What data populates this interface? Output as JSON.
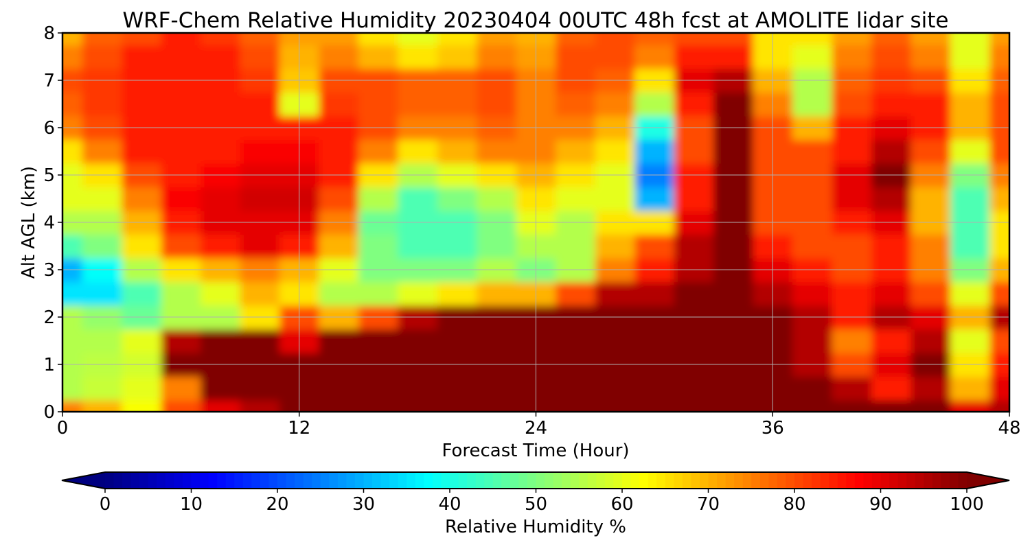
{
  "chart_data": {
    "type": "heatmap",
    "title": "WRF-Chem Relative Humidity 20230404 00UTC 48h fcst at AMOLITE lidar site",
    "xlabel": "Forecast Time (Hour)",
    "ylabel": "Alt AGL (km)",
    "xlim": [
      0,
      48
    ],
    "ylim": [
      0,
      8
    ],
    "xticks": [
      0,
      12,
      24,
      36,
      48
    ],
    "yticks": [
      0,
      1,
      2,
      3,
      4,
      5,
      6,
      7,
      8
    ],
    "grid": true,
    "x": [
      0,
      2,
      4,
      6,
      8,
      10,
      12,
      14,
      16,
      18,
      20,
      22,
      24,
      26,
      28,
      30,
      32,
      34,
      36,
      38,
      40,
      42,
      44,
      46,
      48
    ],
    "y": [
      0,
      0.5,
      1,
      1.5,
      2,
      2.5,
      3,
      3.5,
      4,
      4.5,
      5,
      5.5,
      6,
      6.5,
      7,
      7.5,
      8
    ],
    "z": [
      [
        75,
        70,
        62,
        80,
        90,
        95,
        100,
        100,
        100,
        100,
        100,
        100,
        100,
        100,
        100,
        100,
        100,
        100,
        100,
        100,
        100,
        100,
        100,
        90,
        95
      ],
      [
        55,
        57,
        60,
        75,
        100,
        100,
        100,
        100,
        100,
        100,
        100,
        100,
        100,
        100,
        100,
        100,
        100,
        100,
        100,
        100,
        95,
        85,
        95,
        70,
        90
      ],
      [
        55,
        56,
        58,
        100,
        100,
        100,
        100,
        100,
        100,
        100,
        100,
        100,
        100,
        100,
        100,
        100,
        100,
        100,
        100,
        95,
        80,
        90,
        100,
        65,
        85
      ],
      [
        55,
        55,
        60,
        95,
        100,
        100,
        90,
        100,
        100,
        100,
        100,
        100,
        100,
        100,
        100,
        100,
        100,
        100,
        100,
        95,
        75,
        85,
        95,
        60,
        80
      ],
      [
        55,
        52,
        48,
        55,
        55,
        65,
        80,
        70,
        80,
        95,
        100,
        100,
        100,
        100,
        100,
        100,
        100,
        100,
        100,
        95,
        85,
        95,
        90,
        70,
        95
      ],
      [
        35,
        35,
        45,
        55,
        60,
        70,
        65,
        55,
        55,
        60,
        65,
        70,
        70,
        80,
        95,
        95,
        100,
        100,
        95,
        90,
        85,
        90,
        80,
        60,
        80
      ],
      [
        30,
        38,
        55,
        65,
        70,
        75,
        70,
        60,
        50,
        50,
        50,
        55,
        50,
        55,
        75,
        85,
        95,
        100,
        90,
        85,
        80,
        85,
        75,
        50,
        70
      ],
      [
        45,
        50,
        65,
        80,
        85,
        90,
        85,
        70,
        50,
        45,
        45,
        50,
        55,
        55,
        70,
        80,
        95,
        100,
        85,
        80,
        80,
        85,
        75,
        45,
        65
      ],
      [
        55,
        55,
        70,
        85,
        90,
        90,
        90,
        75,
        48,
        45,
        45,
        50,
        60,
        55,
        65,
        65,
        90,
        100,
        80,
        80,
        85,
        90,
        70,
        45,
        65
      ],
      [
        60,
        60,
        75,
        88,
        90,
        92,
        92,
        80,
        55,
        45,
        50,
        55,
        65,
        60,
        60,
        30,
        85,
        100,
        80,
        80,
        90,
        95,
        70,
        45,
        70
      ],
      [
        60,
        65,
        80,
        85,
        88,
        90,
        90,
        85,
        65,
        55,
        60,
        65,
        70,
        65,
        60,
        25,
        85,
        100,
        80,
        80,
        90,
        100,
        75,
        50,
        75
      ],
      [
        65,
        75,
        85,
        85,
        85,
        88,
        88,
        85,
        75,
        65,
        70,
        75,
        75,
        70,
        65,
        30,
        80,
        100,
        80,
        80,
        85,
        95,
        80,
        60,
        80
      ],
      [
        75,
        80,
        85,
        85,
        85,
        85,
        85,
        85,
        80,
        75,
        75,
        78,
        75,
        75,
        70,
        40,
        80,
        100,
        80,
        70,
        85,
        90,
        85,
        70,
        80
      ],
      [
        78,
        82,
        85,
        85,
        85,
        85,
        60,
        82,
        80,
        78,
        78,
        80,
        75,
        78,
        75,
        55,
        85,
        100,
        75,
        55,
        80,
        85,
        85,
        70,
        80
      ],
      [
        80,
        82,
        85,
        85,
        85,
        82,
        68,
        80,
        80,
        78,
        78,
        80,
        75,
        80,
        78,
        65,
        90,
        95,
        70,
        55,
        78,
        82,
        80,
        65,
        78
      ],
      [
        75,
        80,
        85,
        85,
        85,
        80,
        70,
        75,
        70,
        65,
        68,
        75,
        72,
        80,
        80,
        75,
        85,
        85,
        65,
        60,
        75,
        80,
        75,
        60,
        75
      ],
      [
        70,
        78,
        80,
        85,
        82,
        78,
        72,
        72,
        65,
        60,
        65,
        72,
        70,
        78,
        80,
        78,
        80,
        80,
        65,
        65,
        72,
        78,
        72,
        60,
        72
      ]
    ],
    "colorbar": {
      "label": "Relative Humidity %",
      "ticks": [
        0,
        10,
        20,
        30,
        40,
        50,
        60,
        70,
        80,
        90,
        100
      ],
      "range": [
        0,
        100
      ],
      "extend": "both",
      "colormap": "jet"
    }
  }
}
